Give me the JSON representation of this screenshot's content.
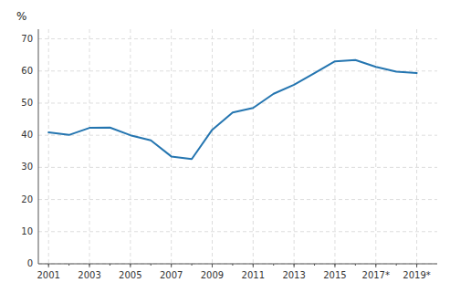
{
  "chart_data": {
    "type": "line",
    "y_label": "%",
    "x": [
      2001,
      2002,
      2003,
      2004,
      2005,
      2006,
      2007,
      2008,
      2009,
      2010,
      2011,
      2012,
      2013,
      2014,
      2015,
      2016,
      2017,
      2018,
      2019
    ],
    "values": [
      40.9,
      40.1,
      42.3,
      42.4,
      40.0,
      38.4,
      33.4,
      32.6,
      41.7,
      47.1,
      48.5,
      52.9,
      55.7,
      59.3,
      63.0,
      63.4,
      61.3,
      59.8,
      59.4
    ],
    "color": "#2475b0",
    "xlim": [
      2000.5,
      2020.0
    ],
    "xticks": [
      2001,
      2003,
      2005,
      2007,
      2009,
      2011,
      2013,
      2015,
      {
        "value": 2017,
        "label": "2017*"
      },
      {
        "value": 2019,
        "label": "2019*"
      }
    ],
    "ylim": [
      0,
      73
    ],
    "yticks": [
      0,
      10,
      20,
      30,
      40,
      50,
      60,
      70
    ],
    "grid": true
  }
}
